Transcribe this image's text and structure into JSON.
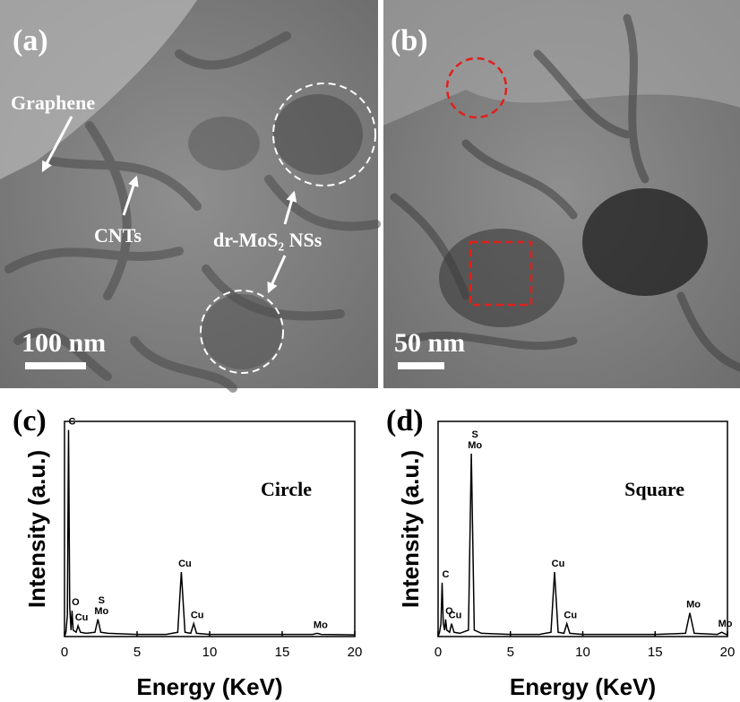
{
  "panels": [
    {
      "label": "(a)",
      "annotations": [
        "Graphene",
        "CNTs",
        "dr-MoS₂ NSs"
      ],
      "scale_bar": "100 nm"
    },
    {
      "label": "(b)",
      "scale_bar": "50 nm"
    }
  ],
  "chart_data": [
    {
      "type": "line",
      "panel_label": "(c)",
      "title": "Circle",
      "x_label": "Energy (KeV)",
      "y_label": "Intensity (a.u.)",
      "xlim": [
        0,
        20
      ],
      "xticks": [
        0,
        5,
        10,
        15,
        20
      ],
      "ylim": [
        0,
        100
      ],
      "x": [
        0,
        0.1,
        0.2,
        0.28,
        0.36,
        0.45,
        0.52,
        0.6,
        0.8,
        0.93,
        1.1,
        1.5,
        2.1,
        2.3,
        2.5,
        3,
        5,
        7,
        7.8,
        8.05,
        8.3,
        8.7,
        8.9,
        9.1,
        10,
        12,
        15,
        17.1,
        17.4,
        17.7,
        20
      ],
      "series": [
        {
          "color": "#000000",
          "values": [
            0,
            2,
            10,
            96,
            14,
            3,
            12,
            3,
            2,
            5,
            2,
            1.5,
            2,
            8,
            2,
            1.5,
            1,
            1,
            2,
            30,
            2,
            1.5,
            6,
            1.5,
            1,
            1,
            1,
            1,
            1.5,
            1,
            0.8
          ]
        }
      ],
      "annotations": [
        {
          "lines": [
            "C"
          ],
          "x": 0.28
        },
        {
          "lines": [
            "O"
          ],
          "x": 0.52
        },
        {
          "lines": [
            "Cu"
          ],
          "x": 0.93
        },
        {
          "lines": [
            "S",
            "Mo"
          ],
          "x": 2.3
        },
        {
          "lines": [
            "Cu"
          ],
          "x": 8.05
        },
        {
          "lines": [
            "Cu"
          ],
          "x": 8.9
        },
        {
          "lines": [
            "Mo"
          ],
          "x": 17.4
        }
      ]
    },
    {
      "type": "line",
      "panel_label": "(d)",
      "title": "Square",
      "x_label": "Energy (KeV)",
      "y_label": "Intensity (a.u.)",
      "xlim": [
        0,
        20
      ],
      "xticks": [
        0,
        5,
        10,
        15,
        20
      ],
      "ylim": [
        0,
        100
      ],
      "x": [
        0,
        0.1,
        0.2,
        0.28,
        0.36,
        0.45,
        0.52,
        0.6,
        0.8,
        0.93,
        1.1,
        1.5,
        2.1,
        2.3,
        2.5,
        3,
        5,
        7,
        7.8,
        8.05,
        8.3,
        8.7,
        8.9,
        9.1,
        10,
        12,
        15,
        17.1,
        17.4,
        17.7,
        19.3,
        19.6,
        19.9,
        20
      ],
      "series": [
        {
          "color": "#000000",
          "values": [
            0,
            2,
            6,
            25,
            6,
            3,
            8,
            3,
            2,
            6,
            2,
            1.5,
            3,
            85,
            3,
            1.5,
            1,
            1,
            2,
            30,
            2,
            1.5,
            6,
            1.5,
            1,
            1,
            1,
            1.5,
            11,
            1.5,
            1,
            2,
            1,
            0.8
          ]
        }
      ],
      "annotations": [
        {
          "lines": [
            "C"
          ],
          "x": 0.28
        },
        {
          "lines": [
            "O"
          ],
          "x": 0.52
        },
        {
          "lines": [
            "Cu"
          ],
          "x": 0.93
        },
        {
          "lines": [
            "S",
            "Mo"
          ],
          "x": 2.3
        },
        {
          "lines": [
            "Cu"
          ],
          "x": 8.05
        },
        {
          "lines": [
            "Cu"
          ],
          "x": 8.9
        },
        {
          "lines": [
            "Mo"
          ],
          "x": 17.4
        },
        {
          "lines": [
            "Mo"
          ],
          "x": 19.6
        }
      ]
    }
  ]
}
